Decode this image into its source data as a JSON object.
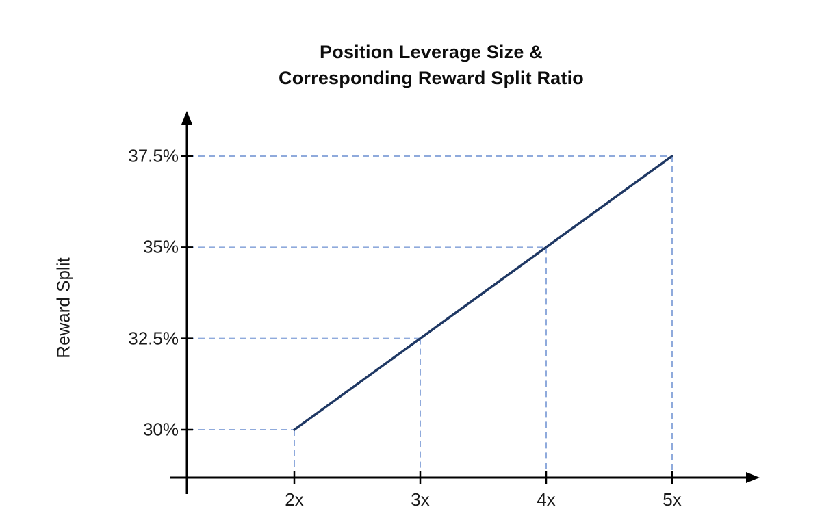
{
  "page": {
    "background_color": "#ffffff"
  },
  "chart_data": {
    "type": "line",
    "title": "Position Leverage Size & Corresponding Reward Split Ratio",
    "title_lines": [
      "Position Leverage Size &",
      "Corresponding Reward Split Ratio"
    ],
    "xlabel": "",
    "ylabel": "Reward Split",
    "x_tick_labels": [
      "2x",
      "3x",
      "4x",
      "5x"
    ],
    "y_tick_labels": [
      "30%",
      "32.5%",
      "35%",
      "37.5%"
    ],
    "points": [
      {
        "x": 2,
        "y": 30,
        "x_label": "2x",
        "y_label": "30%"
      },
      {
        "x": 3,
        "y": 32.5,
        "x_label": "3x",
        "y_label": "32.5%"
      },
      {
        "x": 4,
        "y": 35,
        "x_label": "4x",
        "y_label": "35%"
      },
      {
        "x": 5,
        "y": 37.5,
        "x_label": "5x",
        "y_label": "37.5%"
      }
    ],
    "series": [
      {
        "name": "Reward Split",
        "x": [
          2,
          3,
          4,
          5
        ],
        "y": [
          30,
          32.5,
          35,
          37.5
        ]
      }
    ],
    "xlim": [
      1.1,
      5.7
    ],
    "ylim": [
      28.7,
      40.1
    ],
    "grid": false,
    "legend": false,
    "guide_lines": "dashed from each data point to both axes",
    "colors": {
      "line": "#1F3864",
      "guide_dashed": "#8FAADC",
      "axis": "#000000",
      "text": "#1A1A1A",
      "title": "#0D0D0D"
    }
  }
}
